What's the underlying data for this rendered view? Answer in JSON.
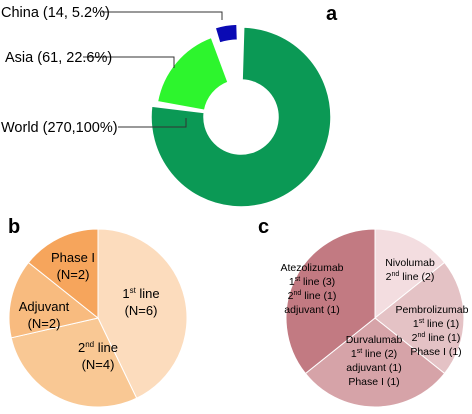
{
  "chart_data": [
    {
      "type": "pie",
      "panel": "a",
      "slices": [
        {
          "label": "World",
          "count": 270,
          "percent": "100%",
          "callout": "World (270,100%)",
          "color": "#0b9955"
        },
        {
          "label": "Asia",
          "count": 61,
          "percent": "22.6%",
          "callout": "Asia (61, 22.6%)",
          "color": "#2df52d"
        },
        {
          "label": "China",
          "count": 14,
          "percent": "5.2%",
          "callout": "China (14, 5.2%)",
          "color": "#0a0ab4"
        }
      ]
    },
    {
      "type": "pie",
      "panel": "b",
      "slices": [
        {
          "label": "1st line",
          "base": "1",
          "sup": "st",
          "rest": " line",
          "n": "(N=6)",
          "value": 6,
          "color": "#fcdcbd"
        },
        {
          "label": "2nd line",
          "base": "2",
          "sup": "nd",
          "rest": " line",
          "n": "(N=4)",
          "value": 4,
          "color": "#f9c894"
        },
        {
          "label": "Adjuvant",
          "n": "(N=2)",
          "value": 2,
          "color": "#f8bb7f"
        },
        {
          "label": "Phase I",
          "n": "(N=2)",
          "value": 2,
          "color": "#f6a55c"
        }
      ]
    },
    {
      "type": "pie",
      "panel": "c",
      "slices": [
        {
          "name": "Nivolumab",
          "value": 2,
          "color": "#f3dde0",
          "lines": [
            {
              "base": "2",
              "sup": "nd",
              "rest": " line (2)"
            }
          ]
        },
        {
          "name": "Pembrolizumab",
          "value": 3,
          "color": "#e4c2c5",
          "lines": [
            {
              "base": "1",
              "sup": "st",
              "rest": " line (1)"
            },
            {
              "base": "2",
              "sup": "nd",
              "rest": " line (1)"
            },
            {
              "text": "Phase I (1)"
            }
          ]
        },
        {
          "name": "Durvalumab",
          "value": 4,
          "color": "#d6a3a8",
          "lines": [
            {
              "base": "1",
              "sup": "st",
              "rest": " line (2)"
            },
            {
              "text": "adjuvant (1)"
            },
            {
              "text": "Phase I (1)"
            }
          ]
        },
        {
          "name": "Atezolizumab",
          "value": 5,
          "color": "#c27a82",
          "lines": [
            {
              "base": "1",
              "sup": "st",
              "rest": " line (3)"
            },
            {
              "base": "2",
              "sup": "nd",
              "rest": " line (1)"
            },
            {
              "text": "adjuvant (1)"
            }
          ]
        }
      ]
    }
  ]
}
